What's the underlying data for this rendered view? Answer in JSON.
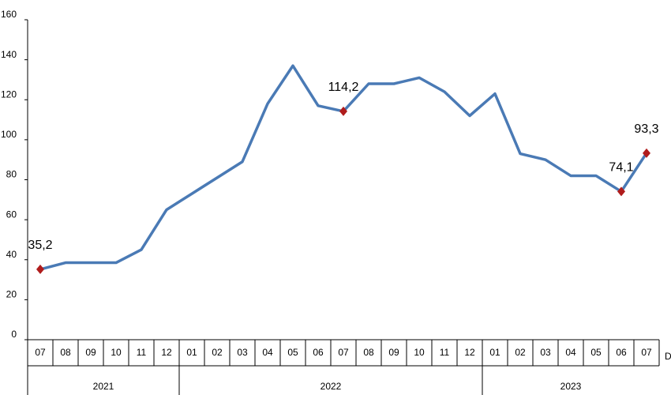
{
  "chart_data": {
    "type": "line",
    "categories": [
      "07",
      "08",
      "09",
      "10",
      "11",
      "12",
      "01",
      "02",
      "03",
      "04",
      "05",
      "06",
      "07",
      "08",
      "09",
      "10",
      "11",
      "12",
      "01",
      "02",
      "03",
      "04",
      "05",
      "06",
      "07"
    ],
    "values": [
      35.2,
      38.5,
      38.5,
      38.5,
      45,
      65,
      73,
      81,
      89,
      118,
      137,
      117,
      114.2,
      128,
      128,
      131,
      124,
      112,
      123,
      93,
      90,
      82,
      82,
      74.1,
      93.3
    ],
    "value_labels": [
      "35,2",
      null,
      null,
      null,
      null,
      null,
      null,
      null,
      null,
      null,
      null,
      null,
      "114,2",
      null,
      null,
      null,
      null,
      null,
      null,
      null,
      null,
      null,
      null,
      "74,1",
      "93,3"
    ],
    "color": "#4a7ab5",
    "marker_color": "#b01c1c",
    "x_groups": [
      {
        "label": "2021",
        "span": 6
      },
      {
        "label": "2022",
        "span": 12
      },
      {
        "label": "2023",
        "span": 7
      }
    ],
    "x_label": "D",
    "ylim": [
      0,
      160
    ],
    "yticks": [
      0,
      20,
      40,
      60,
      80,
      100,
      120,
      140,
      160
    ],
    "grid": false
  }
}
